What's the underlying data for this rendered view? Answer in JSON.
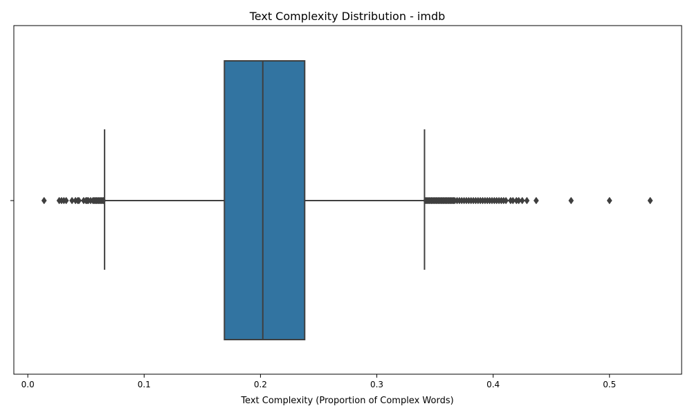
{
  "chart_data": {
    "type": "box",
    "orientation": "horizontal",
    "title": "Text Complexity Distribution - imdb",
    "xlabel": "Text Complexity (Proportion of Complex Words)",
    "ylabel": "",
    "xlim": [
      -0.012,
      0.562
    ],
    "xticks": [
      0.0,
      0.1,
      0.2,
      0.3,
      0.4,
      0.5
    ],
    "xtick_labels": [
      "0.0",
      "0.1",
      "0.2",
      "0.3",
      "0.4",
      "0.5"
    ],
    "grid": false,
    "box": {
      "q1": 0.169,
      "median": 0.202,
      "q3": 0.238,
      "whisker_low": 0.066,
      "whisker_high": 0.341,
      "color": "#3274a1",
      "line_color": "#3f3f3f"
    },
    "outliers": [
      0.014,
      0.027,
      0.029,
      0.031,
      0.033,
      0.038,
      0.041,
      0.043,
      0.044,
      0.048,
      0.05,
      0.051,
      0.052,
      0.054,
      0.056,
      0.057,
      0.058,
      0.059,
      0.06,
      0.061,
      0.062,
      0.063,
      0.064,
      0.065,
      0.342,
      0.343,
      0.344,
      0.345,
      0.346,
      0.347,
      0.348,
      0.349,
      0.35,
      0.351,
      0.352,
      0.353,
      0.354,
      0.355,
      0.356,
      0.357,
      0.358,
      0.359,
      0.36,
      0.361,
      0.362,
      0.363,
      0.364,
      0.365,
      0.366,
      0.367,
      0.369,
      0.371,
      0.373,
      0.375,
      0.377,
      0.379,
      0.381,
      0.383,
      0.385,
      0.387,
      0.389,
      0.391,
      0.393,
      0.395,
      0.397,
      0.399,
      0.401,
      0.403,
      0.405,
      0.407,
      0.409,
      0.411,
      0.415,
      0.417,
      0.42,
      0.422,
      0.425,
      0.429,
      0.437,
      0.467,
      0.5,
      0.535
    ]
  }
}
